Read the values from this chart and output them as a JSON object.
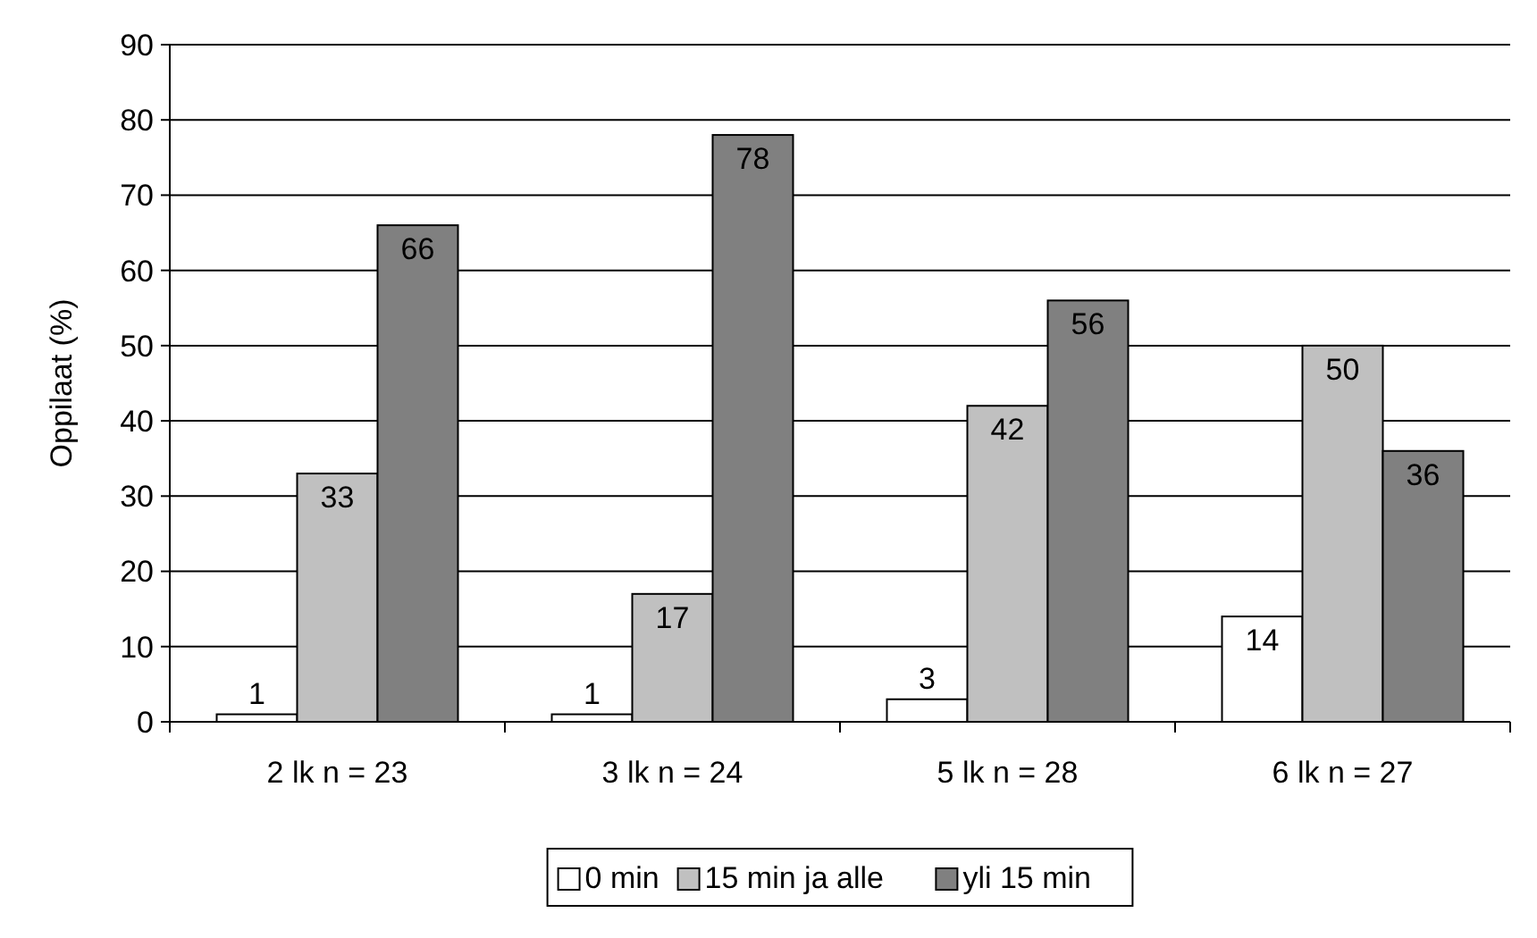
{
  "chart_data": {
    "type": "bar",
    "ylabel": "Oppilaat (%)",
    "categories": [
      "2 lk n = 23",
      "3 lk n = 24",
      "5 lk n = 28",
      "6 lk n = 27"
    ],
    "series": [
      {
        "name": "0 min",
        "color": "#ffffff",
        "values": [
          1,
          1,
          3,
          14
        ]
      },
      {
        "name": "15 min ja alle",
        "color": "#c0c0c0",
        "values": [
          33,
          17,
          42,
          50
        ]
      },
      {
        "name": "yli 15 min",
        "color": "#808080",
        "values": [
          66,
          78,
          56,
          36
        ]
      }
    ],
    "ylim": [
      0,
      90
    ],
    "yticks": [
      0,
      10,
      20,
      30,
      40,
      50,
      60,
      70,
      80,
      90
    ],
    "grid": "y",
    "legend": "bottom",
    "data_labels": true
  }
}
